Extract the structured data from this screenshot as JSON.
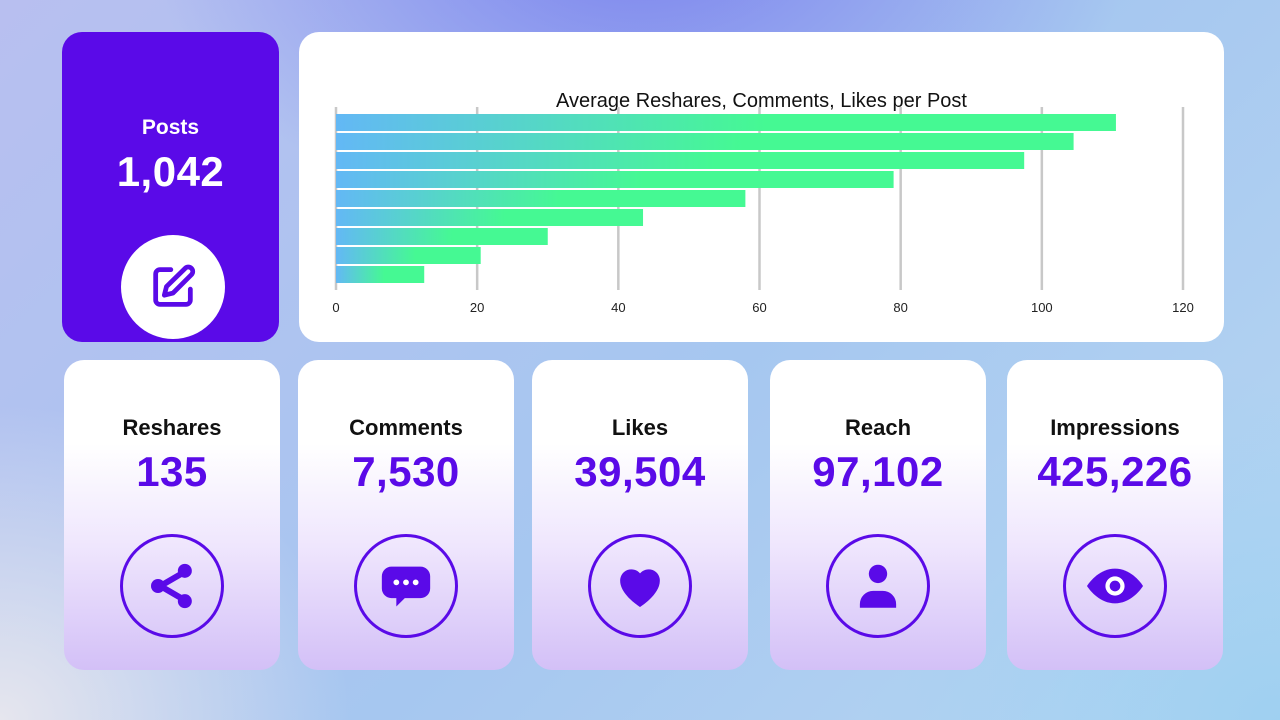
{
  "posts": {
    "label": "Posts",
    "value": "1,042",
    "icon": "edit-icon"
  },
  "chart_data": {
    "type": "bar",
    "title": "Average Reshares, Comments, Likes per Post",
    "orientation": "horizontal",
    "values": [
      110.5,
      104.5,
      97.5,
      79,
      58,
      43.5,
      30,
      20.5,
      12.5
    ],
    "xlim": [
      0,
      120
    ],
    "x_ticks": [
      "0",
      "20",
      "40",
      "60",
      "80",
      "100",
      "120"
    ],
    "grid": true,
    "colors": {
      "bar_start": "#63b8f5",
      "bar_end": "#45f993",
      "grid": "#c8c8c8"
    }
  },
  "metrics": [
    {
      "label": "Reshares",
      "value": "135",
      "icon": "share-icon"
    },
    {
      "label": "Comments",
      "value": "7,530",
      "icon": "chat-bubble-icon"
    },
    {
      "label": "Likes",
      "value": "39,504",
      "icon": "heart-icon"
    },
    {
      "label": "Reach",
      "value": "97,102",
      "icon": "person-icon"
    },
    {
      "label": "Impressions",
      "value": "425,226",
      "icon": "eye-icon"
    }
  ],
  "colors": {
    "accent": "#5a0ae8",
    "card": "#ffffff"
  }
}
